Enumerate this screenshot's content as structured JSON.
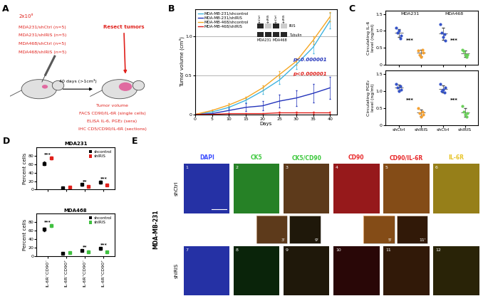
{
  "panel_labels": [
    "A",
    "B",
    "C",
    "D",
    "E"
  ],
  "diagram": {
    "cells": "2x10⁶",
    "groups": [
      "MDA231/shCtrl (n=5)",
      "MDA231/shIRIS (n=5)",
      "MDA468/shCtrl (n=5)",
      "MDA468/shIRIS (n=5)"
    ],
    "step": "40 days (>1cm³)",
    "resect": "Resect tumors",
    "readouts": [
      "Tumor volume",
      "FACS CD90/IL-6R (single cells)",
      "ELISA IL-6, PGE₂ (sera)",
      "IHC CD5/CD90/IL-6R (sections)"
    ],
    "color": "#e0201b"
  },
  "chart_data": [
    {
      "type": "line",
      "xlabel": "Days",
      "ylabel": "Tumor volume (cm³)",
      "x": [
        0,
        5,
        10,
        15,
        20,
        25,
        30,
        35,
        40
      ],
      "xlim": [
        0,
        42
      ],
      "xticks": [
        0,
        5,
        10,
        15,
        20,
        25,
        30,
        35,
        40
      ],
      "ylim": [
        0,
        1.35
      ],
      "yticks": [
        0,
        0.5,
        1.0
      ],
      "grid": true,
      "legend": "upper left",
      "series": [
        {
          "name": "MDA-MB-231/shcontrol",
          "color": "#3fb3e0",
          "values": [
            0,
            0.03,
            0.09,
            0.18,
            0.3,
            0.44,
            0.64,
            0.86,
            1.2
          ],
          "error": [
            0,
            0.01,
            0.02,
            0.03,
            0.04,
            0.05,
            0.06,
            0.08,
            0.1
          ]
        },
        {
          "name": "MDA-MB-231/shIRIS",
          "color": "#2233bb",
          "values": [
            0,
            0.01,
            0.05,
            0.09,
            0.11,
            0.17,
            0.21,
            0.27,
            0.34
          ],
          "error": [
            0,
            0.01,
            0.04,
            0.05,
            0.06,
            0.08,
            0.1,
            0.12,
            0.14
          ]
        },
        {
          "name": "MDA-MB-468/shcontrol",
          "color": "#f5a623",
          "values": [
            0,
            0.05,
            0.12,
            0.21,
            0.34,
            0.51,
            0.68,
            0.95,
            1.25
          ],
          "error": [
            0,
            0.01,
            0.02,
            0.02,
            0.03,
            0.04,
            0.04,
            0.05,
            0.06
          ]
        },
        {
          "name": "MDA-MB-468/shIRIS",
          "color": "#e0201b",
          "values": [
            0,
            0,
            0.01,
            0.01,
            0.01,
            0.02,
            0.02,
            0.02,
            0.02
          ],
          "error": [
            0,
            0,
            0.01,
            0.01,
            0.01,
            0.01,
            0.01,
            0.01,
            0.01
          ]
        }
      ],
      "annotations": [
        {
          "text": "p<0.000001",
          "color": "#2233bb"
        },
        {
          "text": "p<0.000001",
          "color": "#e0201b"
        }
      ],
      "inset": {
        "rows": [
          "IRIS",
          "Tubulin"
        ],
        "lanes": [
          "shCtrl",
          "shIRIS",
          "shCtrl",
          "shIRIS"
        ],
        "groups": [
          "MDA231",
          "MDA468"
        ]
      }
    },
    {
      "type": "dot",
      "ylabel": "Circulating IL-6\nlevel (ng/ml)",
      "groups": [
        "MDA231",
        "MDA468"
      ],
      "tick_labels": "y",
      "ylim": [
        0,
        1.6
      ],
      "yticks": [
        0,
        0.5,
        1.0,
        1.5
      ],
      "colors": [
        "#3553c8",
        "#f5a030",
        "#3553c8",
        "#6acf5a"
      ],
      "points": [
        [
          1.1,
          0.95,
          1.0,
          0.78,
          0.85
        ],
        [
          0.42,
          0.3,
          0.22,
          0.45,
          0.35
        ],
        [
          1.2,
          0.95,
          0.82,
          0.9,
          0.72
        ],
        [
          0.45,
          0.4,
          0.3,
          0.22,
          0.3
        ]
      ],
      "mean": [
        0.94,
        0.35,
        0.92,
        0.33
      ],
      "error": [
        0.12,
        0.09,
        0.18,
        0.09
      ],
      "significance": [
        "***",
        "***"
      ]
    },
    {
      "type": "dot",
      "ylabel": "Circulating PGE₂\nlevel (ng/ml)",
      "categories": [
        "shCtrl",
        "shIRIS",
        "shCtrl",
        "shIRIS"
      ],
      "ylim": [
        0,
        1.6
      ],
      "yticks": [
        0,
        0.5,
        1.0,
        1.5
      ],
      "colors": [
        "#3553c8",
        "#f5a030",
        "#3553c8",
        "#6acf5a"
      ],
      "points": [
        [
          1.2,
          1.1,
          1.0,
          1.15,
          1.05
        ],
        [
          0.5,
          0.35,
          0.25,
          0.4,
          0.3
        ],
        [
          1.2,
          1.0,
          1.05,
          0.95,
          1.1
        ],
        [
          0.55,
          0.4,
          0.3,
          0.25,
          0.35
        ]
      ],
      "mean": [
        1.1,
        0.36,
        1.06,
        0.37
      ],
      "error": [
        0.08,
        0.1,
        0.1,
        0.12
      ],
      "significance": [
        "***",
        "***"
      ]
    },
    {
      "type": "box",
      "title": "MDA231",
      "ylabel": "Percent cells",
      "tick_labels": "y",
      "ylim": [
        0,
        100
      ],
      "yticks": [
        0,
        20,
        40,
        60,
        80
      ],
      "legend": "upper right",
      "series": [
        {
          "name": "shcontrol",
          "color": "#000000",
          "values": [
            62,
            5,
            12,
            18
          ],
          "error": [
            4,
            1,
            2,
            3
          ]
        },
        {
          "name": "shIRIS",
          "color": "#e0201b",
          "values": [
            75,
            6,
            8,
            11
          ],
          "error": [
            3,
            1,
            2,
            1
          ]
        }
      ],
      "significance": [
        "***",
        null,
        "**",
        "***"
      ]
    },
    {
      "type": "box",
      "title": "MDA468",
      "ylabel": "Percent cells",
      "categories": [
        "IL-6R⁻CD90⁻",
        "IL-6R⁻CD90⁺",
        "IL-6R⁺CD90⁻",
        "IL-6R⁺CD90⁺"
      ],
      "ylim": [
        0,
        100
      ],
      "yticks": [
        0,
        20,
        40,
        60,
        80
      ],
      "legend": "upper right",
      "series": [
        {
          "name": "shcontrol",
          "color": "#000000",
          "values": [
            63,
            6,
            13,
            17
          ],
          "error": [
            4,
            1,
            2,
            3
          ]
        },
        {
          "name": "shIRIS",
          "color": "#40c040",
          "values": [
            72,
            7,
            10,
            9
          ],
          "error": [
            3,
            1,
            2,
            1
          ]
        }
      ],
      "significance": [
        "***",
        null,
        "**",
        "***"
      ]
    }
  ],
  "images": {
    "row_label": "MDA-MB-231",
    "rows": [
      "shCtrl",
      "shIRIS"
    ],
    "columns": [
      {
        "name": "DAPI",
        "colors": [
          "#3a4cff"
        ]
      },
      {
        "name": "CK5",
        "colors": [
          "#3cc83c"
        ]
      },
      {
        "name": "CK5/CD90",
        "colors": [
          "#3cc83c",
          "#e8282a"
        ]
      },
      {
        "name": "CD90",
        "colors": [
          "#e8282a"
        ]
      },
      {
        "name": "CD90/IL-6R",
        "colors": [
          "#e8282a",
          "#e8c428"
        ]
      },
      {
        "name": "IL-6R",
        "colors": [
          "#e8c428"
        ]
      }
    ],
    "panel_numbers": [
      [
        1,
        2,
        3,
        4,
        5,
        6
      ],
      [
        7,
        8,
        9,
        10,
        11,
        12
      ]
    ],
    "insets": [
      "3'",
      "9'",
      "5'",
      "11'"
    ]
  }
}
